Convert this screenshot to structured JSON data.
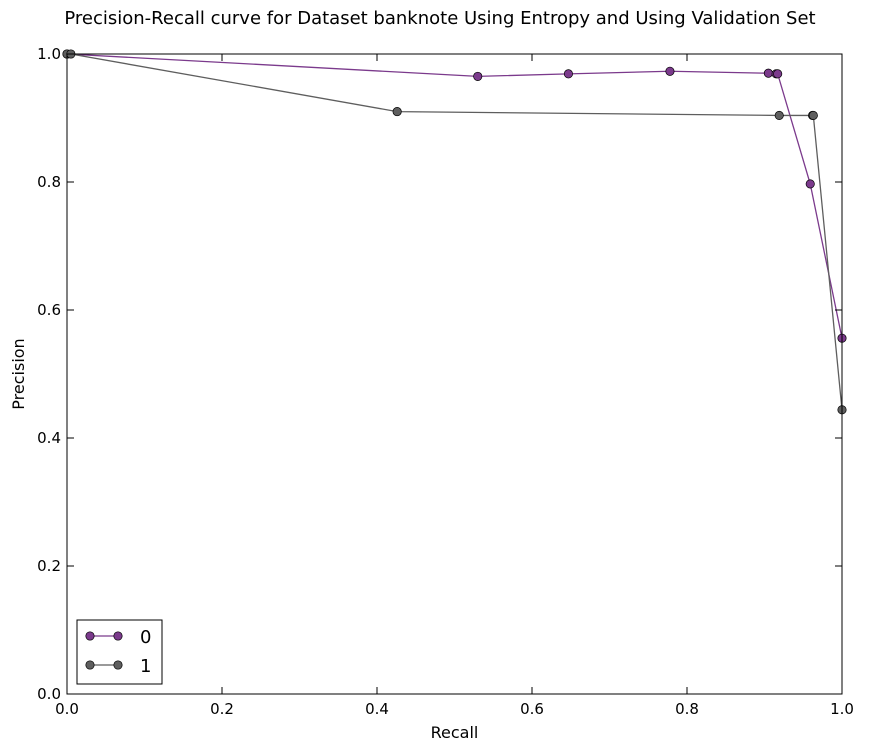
{
  "chart_data": {
    "type": "line",
    "title": "Precision-Recall curve for Dataset banknote Using Entropy and Using Validation Set",
    "xlabel": "Recall",
    "ylabel": "Precision",
    "xlim": [
      0.0,
      1.0
    ],
    "ylim": [
      0.0,
      1.0
    ],
    "xticks": [
      "0.0",
      "0.2",
      "0.4",
      "0.6",
      "0.8",
      "1.0"
    ],
    "yticks": [
      "0.0",
      "0.2",
      "0.4",
      "0.6",
      "0.8",
      "1.0"
    ],
    "grid": false,
    "legend_position": "bottom-left",
    "series": [
      {
        "name": "0",
        "color": "#7b3a8c",
        "x": [
          0.0,
          0.53,
          0.647,
          0.778,
          0.905,
          0.915,
          0.917,
          0.959,
          1.0
        ],
        "y": [
          1.0,
          0.965,
          0.969,
          0.973,
          0.97,
          0.969,
          0.969,
          0.797,
          0.556
        ]
      },
      {
        "name": "1",
        "color": "#5e5e5e",
        "x": [
          0.0,
          0.005,
          0.426,
          0.919,
          0.962,
          0.963,
          1.0
        ],
        "y": [
          1.0,
          1.0,
          0.91,
          0.904,
          0.904,
          0.904,
          0.444
        ]
      }
    ]
  }
}
